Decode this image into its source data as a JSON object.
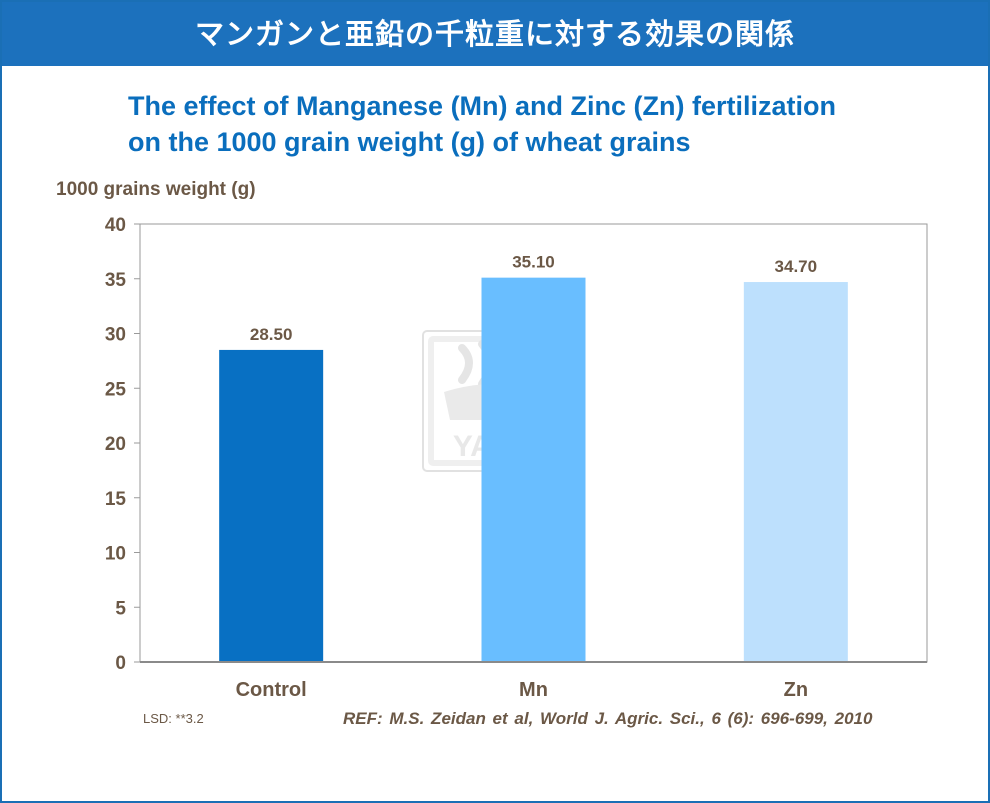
{
  "banner": {
    "title": "マンガンと亜鉛の千粒重に対する効果の関係"
  },
  "chart_data": {
    "type": "bar",
    "title_lines": [
      "The effect of Manganese (Mn) and Zinc (Zn) fertilization",
      "on the 1000 grain weight (g) of wheat grains"
    ],
    "ylabel": "1000 grains weight (g)",
    "xlabel": "",
    "categories": [
      "Control",
      "Mn",
      "Zn"
    ],
    "values": [
      28.5,
      35.1,
      34.7
    ],
    "value_labels": [
      "28.50",
      "35.10",
      "34.70"
    ],
    "bar_colors": [
      "#0870c3",
      "#69beff",
      "#bde0fd"
    ],
    "ylim": [
      0,
      40
    ],
    "yticks": [
      "0",
      "5",
      "10",
      "15",
      "20",
      "25",
      "30",
      "35",
      "40"
    ],
    "grid": false,
    "legend": "none"
  },
  "watermark": {
    "logo_text": "YARA"
  },
  "footer": {
    "lsd": "LSD: **3.2",
    "reference": "REF: M.S. Zeidan et al, World J. Agric. Sci., 6 (6): 696-699, 2010"
  }
}
